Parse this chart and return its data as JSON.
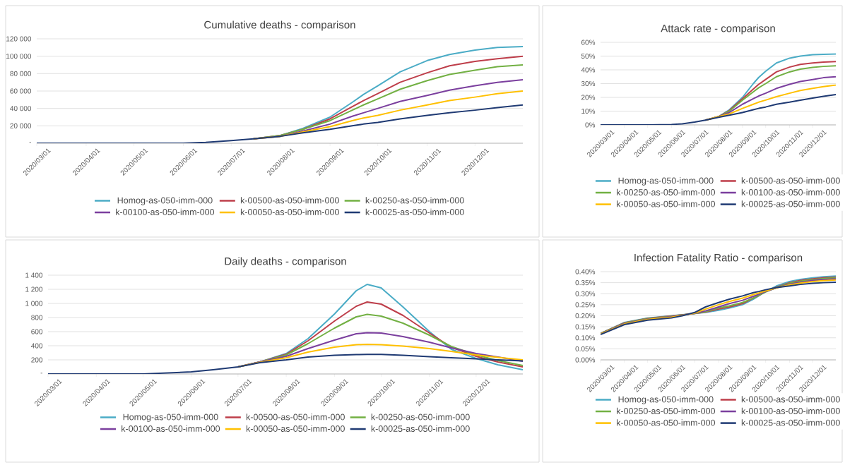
{
  "chart_data": [
    {
      "type": "line",
      "title": "Cumulative deaths - comparison",
      "grid": "y",
      "legend": "bottom",
      "x": [
        "2020-03-01",
        "2020-04-01",
        "2020-05-01",
        "2020-06-01",
        "2020-06-15",
        "2020-07-01",
        "2020-07-15",
        "2020-08-01",
        "2020-08-15",
        "2020-09-01",
        "2020-09-15",
        "2020-09-22",
        "2020-10-01",
        "2020-10-15",
        "2020-11-01",
        "2020-11-15",
        "2020-12-01",
        "2020-12-15",
        "2020-12-31"
      ],
      "xlim": [
        "2020-03-01",
        "2020-12-31"
      ],
      "xticks": [
        {
          "value": "2020-03-01",
          "label": "2020/03/01"
        },
        {
          "value": "2020-04-01",
          "label": "2020/04/01"
        },
        {
          "value": "2020-05-01",
          "label": "2020/05/01"
        },
        {
          "value": "2020-06-01",
          "label": "2020/06/01"
        },
        {
          "value": "2020-07-01",
          "label": "2020/07/01"
        },
        {
          "value": "2020-08-01",
          "label": "2020/08/01"
        },
        {
          "value": "2020-09-01",
          "label": "2020/09/01"
        },
        {
          "value": "2020-10-01",
          "label": "2020/10/01"
        },
        {
          "value": "2020-11-01",
          "label": "2020/11/01"
        },
        {
          "value": "2020-12-01",
          "label": "2020/12/01"
        }
      ],
      "ylim": [
        0,
        120000
      ],
      "yticks": [
        {
          "value": 0,
          "label": "-"
        },
        {
          "value": 20000,
          "label": "20 000"
        },
        {
          "value": 40000,
          "label": "40 000"
        },
        {
          "value": 60000,
          "label": "60 000"
        },
        {
          "value": 80000,
          "label": "80 000"
        },
        {
          "value": 100000,
          "label": "100 000"
        },
        {
          "value": 120000,
          "label": "120 000"
        }
      ],
      "series": [
        {
          "name": "Homog-as-050-imm-000",
          "color": "#4bacc6",
          "values": [
            null,
            null,
            null,
            null,
            null,
            null,
            5000,
            9000,
            17000,
            30000,
            47000,
            56000,
            66000,
            82000,
            95000,
            102000,
            107000,
            110000,
            111000
          ]
        },
        {
          "name": "k-00500-as-050-imm-000",
          "color": "#be3e4a",
          "values": [
            null,
            null,
            null,
            null,
            null,
            null,
            5000,
            9000,
            16000,
            28000,
            42000,
            49000,
            57000,
            70000,
            81000,
            89000,
            94000,
            97000,
            100000
          ]
        },
        {
          "name": "k-00250-as-050-imm-000",
          "color": "#72b043",
          "values": [
            null,
            null,
            null,
            null,
            null,
            null,
            5000,
            9000,
            16000,
            26000,
            38000,
            44000,
            51000,
            62000,
            72000,
            79000,
            84000,
            88000,
            90000
          ]
        },
        {
          "name": "k-00100-as-050-imm-000",
          "color": "#7b3f9e",
          "values": [
            null,
            null,
            null,
            null,
            null,
            null,
            5000,
            8000,
            14000,
            22000,
            31000,
            35000,
            40000,
            48000,
            55000,
            61000,
            66000,
            70000,
            73000
          ]
        },
        {
          "name": "k-00050-as-050-imm-000",
          "color": "#ffc000",
          "values": [
            null,
            null,
            null,
            null,
            null,
            null,
            5000,
            8000,
            13000,
            19000,
            26000,
            29000,
            32000,
            38000,
            44000,
            49000,
            53000,
            57000,
            60000
          ]
        },
        {
          "name": "k-00025-as-050-imm-000",
          "color": "#1f3a73",
          "values": [
            0,
            0,
            0,
            0,
            1000,
            3000,
            5000,
            8000,
            12000,
            16000,
            20000,
            22000,
            24000,
            28000,
            32000,
            35000,
            38000,
            41000,
            44000
          ]
        }
      ]
    },
    {
      "type": "line",
      "title": "Attack rate - comparison",
      "grid": "y",
      "legend": "bottom",
      "x": [
        "2020-03-01",
        "2020-04-01",
        "2020-05-01",
        "2020-06-01",
        "2020-06-15",
        "2020-07-01",
        "2020-07-15",
        "2020-08-01",
        "2020-08-15",
        "2020-09-01",
        "2020-09-15",
        "2020-09-22",
        "2020-10-01",
        "2020-10-15",
        "2020-11-01",
        "2020-11-15",
        "2020-12-01",
        "2020-12-15",
        "2020-12-31"
      ],
      "xlim": [
        "2020-03-01",
        "2020-12-31"
      ],
      "xticks": [
        {
          "value": "2020-03-01",
          "label": "2020/03/01"
        },
        {
          "value": "2020-04-01",
          "label": "2020/04/01"
        },
        {
          "value": "2020-05-01",
          "label": "2020/05/01"
        },
        {
          "value": "2020-06-01",
          "label": "2020/06/01"
        },
        {
          "value": "2020-07-01",
          "label": "2020/07/01"
        },
        {
          "value": "2020-08-01",
          "label": "2020/08/01"
        },
        {
          "value": "2020-09-01",
          "label": "2020/09/01"
        },
        {
          "value": "2020-10-01",
          "label": "2020/10/01"
        },
        {
          "value": "2020-11-01",
          "label": "2020/11/01"
        },
        {
          "value": "2020-12-01",
          "label": "2020/12/01"
        }
      ],
      "ylim": [
        0,
        60
      ],
      "yticks": [
        {
          "value": 0,
          "label": "0%"
        },
        {
          "value": 10,
          "label": "10%"
        },
        {
          "value": 20,
          "label": "20%"
        },
        {
          "value": 30,
          "label": "30%"
        },
        {
          "value": 40,
          "label": "40%"
        },
        {
          "value": 50,
          "label": "50%"
        },
        {
          "value": 60,
          "label": "60%"
        }
      ],
      "series": [
        {
          "name": "Homog-as-050-imm-000",
          "color": "#4bacc6",
          "values": [
            null,
            null,
            null,
            null,
            null,
            null,
            3.5,
            6,
            11,
            20,
            30,
            34.5,
            39,
            45,
            48.5,
            50,
            51,
            51.3,
            51.5
          ]
        },
        {
          "name": "k-00500-as-050-imm-000",
          "color": "#be3e4a",
          "values": [
            null,
            null,
            null,
            null,
            null,
            null,
            3.5,
            6,
            10.5,
            19,
            26,
            29.5,
            33,
            38.5,
            42,
            44,
            45,
            45.7,
            46
          ]
        },
        {
          "name": "k-00250-as-050-imm-000",
          "color": "#72b043",
          "values": [
            null,
            null,
            null,
            null,
            null,
            null,
            3.5,
            6,
            10,
            18,
            24,
            27,
            30,
            35,
            38.5,
            40.5,
            41.8,
            42.5,
            43
          ]
        },
        {
          "name": "k-00100-as-050-imm-000",
          "color": "#7b3f9e",
          "values": [
            null,
            null,
            null,
            null,
            null,
            null,
            3.5,
            6,
            9,
            15,
            19,
            21,
            23,
            26.5,
            29.5,
            31.5,
            33,
            34.3,
            35
          ]
        },
        {
          "name": "k-00050-as-050-imm-000",
          "color": "#ffc000",
          "values": [
            null,
            null,
            null,
            null,
            null,
            null,
            3.5,
            6,
            8,
            12,
            15,
            16.5,
            18,
            20.5,
            23,
            25,
            26.5,
            27.8,
            29
          ]
        },
        {
          "name": "k-00025-as-050-imm-000",
          "color": "#1f3a73",
          "values": [
            0,
            0,
            0,
            0.3,
            0.8,
            2,
            3.5,
            5.5,
            7,
            9,
            11,
            12,
            13,
            15,
            16.5,
            18,
            19.5,
            20.8,
            22
          ]
        }
      ]
    },
    {
      "type": "line",
      "title": "Daily deaths - comparison",
      "grid": "y",
      "legend": "bottom",
      "x": [
        "2020-03-01",
        "2020-04-01",
        "2020-05-01",
        "2020-06-01",
        "2020-06-15",
        "2020-07-01",
        "2020-07-15",
        "2020-08-01",
        "2020-08-15",
        "2020-09-01",
        "2020-09-15",
        "2020-09-22",
        "2020-10-01",
        "2020-10-15",
        "2020-11-01",
        "2020-11-15",
        "2020-12-01",
        "2020-12-15",
        "2020-12-31"
      ],
      "xlim": [
        "2020-03-01",
        "2020-12-31"
      ],
      "xticks": [
        {
          "value": "2020-03-01",
          "label": "2020/03/01"
        },
        {
          "value": "2020-04-01",
          "label": "2020/04/01"
        },
        {
          "value": "2020-05-01",
          "label": "2020/05/01"
        },
        {
          "value": "2020-06-01",
          "label": "2020/06/01"
        },
        {
          "value": "2020-07-01",
          "label": "2020/07/01"
        },
        {
          "value": "2020-08-01",
          "label": "2020/08/01"
        },
        {
          "value": "2020-09-01",
          "label": "2020/09/01"
        },
        {
          "value": "2020-10-01",
          "label": "2020/10/01"
        },
        {
          "value": "2020-11-01",
          "label": "2020/11/01"
        },
        {
          "value": "2020-12-01",
          "label": "2020/12/01"
        }
      ],
      "ylim": [
        0,
        1400
      ],
      "yticks": [
        {
          "value": 0,
          "label": "-"
        },
        200,
        400,
        600,
        800,
        {
          "value": 1000,
          "label": "1 000"
        },
        {
          "value": 1200,
          "label": "1 200"
        },
        {
          "value": 1400,
          "label": "1 400"
        }
      ],
      "series": [
        {
          "name": "Homog-as-050-imm-000",
          "color": "#4bacc6",
          "values": [
            null,
            null,
            null,
            null,
            null,
            100,
            170,
            290,
            500,
            850,
            1180,
            1270,
            1220,
            950,
            600,
            350,
            220,
            130,
            60
          ]
        },
        {
          "name": "k-00500-as-050-imm-000",
          "color": "#be3e4a",
          "values": [
            null,
            null,
            null,
            null,
            null,
            100,
            170,
            280,
            470,
            750,
            960,
            1020,
            990,
            830,
            580,
            380,
            250,
            170,
            100
          ]
        },
        {
          "name": "k-00250-as-050-imm-000",
          "color": "#72b043",
          "values": [
            null,
            null,
            null,
            null,
            null,
            100,
            170,
            270,
            430,
            650,
            810,
            845,
            820,
            720,
            550,
            390,
            270,
            190,
            120
          ]
        },
        {
          "name": "k-00100-as-050-imm-000",
          "color": "#7b3f9e",
          "values": [
            null,
            null,
            null,
            null,
            null,
            100,
            170,
            250,
            360,
            480,
            570,
            585,
            580,
            530,
            450,
            370,
            290,
            240,
            180
          ]
        },
        {
          "name": "k-00050-as-050-imm-000",
          "color": "#ffc000",
          "values": [
            null,
            null,
            null,
            null,
            null,
            100,
            165,
            230,
            310,
            380,
            415,
            420,
            415,
            395,
            360,
            320,
            270,
            235,
            200
          ]
        },
        {
          "name": "k-00025-as-050-imm-000",
          "color": "#1f3a73",
          "values": [
            0,
            0,
            0,
            30,
            60,
            100,
            160,
            200,
            240,
            265,
            275,
            278,
            278,
            265,
            245,
            230,
            215,
            200,
            185
          ]
        }
      ]
    },
    {
      "type": "line",
      "title": "Infection Fatality Ratio - comparison",
      "grid": "y",
      "legend": "bottom",
      "x": [
        "2020-03-01",
        "2020-04-01",
        "2020-05-01",
        "2020-06-01",
        "2020-06-15",
        "2020-07-01",
        "2020-07-15",
        "2020-08-01",
        "2020-08-15",
        "2020-09-01",
        "2020-09-15",
        "2020-09-22",
        "2020-10-01",
        "2020-10-15",
        "2020-11-01",
        "2020-11-15",
        "2020-12-01",
        "2020-12-15",
        "2020-12-31"
      ],
      "xlim": [
        "2020-03-01",
        "2020-12-31"
      ],
      "xticks": [
        {
          "value": "2020-03-01",
          "label": "2020/03/01"
        },
        {
          "value": "2020-04-01",
          "label": "2020/04/01"
        },
        {
          "value": "2020-05-01",
          "label": "2020/05/01"
        },
        {
          "value": "2020-06-01",
          "label": "2020/06/01"
        },
        {
          "value": "2020-07-01",
          "label": "2020/07/01"
        },
        {
          "value": "2020-08-01",
          "label": "2020/08/01"
        },
        {
          "value": "2020-09-01",
          "label": "2020/09/01"
        },
        {
          "value": "2020-10-01",
          "label": "2020/10/01"
        },
        {
          "value": "2020-11-01",
          "label": "2020/11/01"
        },
        {
          "value": "2020-12-01",
          "label": "2020/12/01"
        }
      ],
      "ylim": [
        0,
        0.4
      ],
      "yticks": [
        {
          "value": 0,
          "label": "0.00%"
        },
        {
          "value": 0.05,
          "label": "0.05%"
        },
        {
          "value": 0.1,
          "label": "0.10%"
        },
        {
          "value": 0.15,
          "label": "0.15%"
        },
        {
          "value": 0.2,
          "label": "0.20%"
        },
        {
          "value": 0.25,
          "label": "0.25%"
        },
        {
          "value": 0.3,
          "label": "0.30%"
        },
        {
          "value": 0.35,
          "label": "0.35%"
        },
        {
          "value": 0.4,
          "label": "0.40%"
        }
      ],
      "series": [
        {
          "name": "Homog-as-050-imm-000",
          "color": "#4bacc6",
          "values": [
            0.12,
            0.17,
            0.19,
            0.2,
            0.205,
            0.21,
            0.215,
            0.225,
            0.235,
            0.25,
            0.275,
            0.29,
            0.31,
            0.335,
            0.355,
            0.365,
            0.372,
            0.377,
            0.38
          ]
        },
        {
          "name": "k-00500-as-050-imm-000",
          "color": "#be3e4a",
          "values": [
            0.12,
            0.168,
            0.188,
            0.199,
            0.204,
            0.21,
            0.217,
            0.23,
            0.24,
            0.255,
            0.28,
            0.292,
            0.31,
            0.33,
            0.35,
            0.36,
            0.367,
            0.372,
            0.375
          ]
        },
        {
          "name": "k-00250-as-050-imm-000",
          "color": "#72b043",
          "values": [
            0.12,
            0.167,
            0.187,
            0.198,
            0.204,
            0.21,
            0.218,
            0.235,
            0.245,
            0.26,
            0.28,
            0.293,
            0.308,
            0.328,
            0.347,
            0.357,
            0.364,
            0.369,
            0.372
          ]
        },
        {
          "name": "k-00100-as-050-imm-000",
          "color": "#7b3f9e",
          "values": [
            0.118,
            0.165,
            0.185,
            0.196,
            0.203,
            0.211,
            0.222,
            0.24,
            0.255,
            0.27,
            0.288,
            0.297,
            0.31,
            0.326,
            0.343,
            0.352,
            0.36,
            0.364,
            0.367
          ]
        },
        {
          "name": "k-00050-as-050-imm-000",
          "color": "#ffc000",
          "values": [
            0.117,
            0.163,
            0.183,
            0.194,
            0.202,
            0.212,
            0.23,
            0.25,
            0.265,
            0.28,
            0.296,
            0.303,
            0.313,
            0.326,
            0.34,
            0.348,
            0.355,
            0.359,
            0.362
          ]
        },
        {
          "name": "k-00025-as-050-imm-000",
          "color": "#1f3a73",
          "values": [
            0.115,
            0.16,
            0.18,
            0.19,
            0.2,
            0.215,
            0.24,
            0.26,
            0.275,
            0.29,
            0.305,
            0.31,
            0.318,
            0.328,
            0.335,
            0.342,
            0.347,
            0.35,
            0.352
          ]
        }
      ]
    }
  ]
}
